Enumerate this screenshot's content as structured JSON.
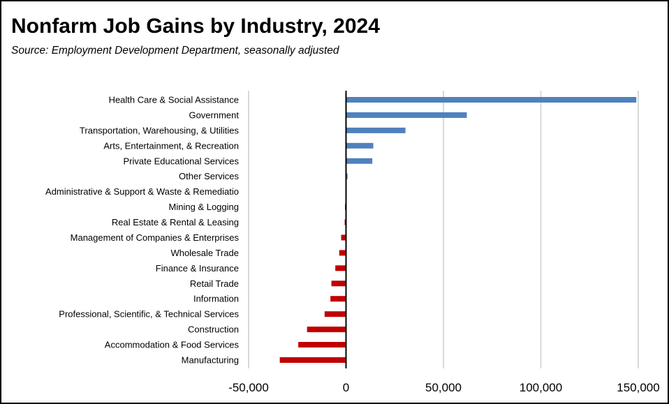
{
  "chart_data": {
    "type": "bar",
    "orientation": "horizontal",
    "title": "Nonfarm Job Gains by Industry, 2024",
    "subtitle": "Source:  Employment Development Department, seasonally adjusted",
    "xlabel": "",
    "ylabel": "",
    "xlim": [
      -50000,
      150000
    ],
    "x_ticks": [
      -50000,
      0,
      50000,
      100000,
      150000
    ],
    "x_tick_labels": [
      "-50,000",
      "0",
      "50,000",
      "100,000",
      "150,000"
    ],
    "grid": "vertical gridlines",
    "legend": "none",
    "categories": [
      "Health Care & Social Assistance",
      "Government",
      "Transportation, Warehousing, & Utilities",
      "Arts, Entertainment, & Recreation",
      "Private Educational Services",
      "Other Services",
      "Administrative & Support & Waste & Remediatio",
      "Mining & Logging",
      "Real Estate & Rental & Leasing",
      "Management of Companies & Enterprises",
      "Wholesale Trade",
      "Finance & Insurance",
      "Retail Trade",
      "Information",
      "Professional, Scientific, & Technical Services",
      "Construction",
      "Accommodation & Food Services",
      "Manufacturing"
    ],
    "values": [
      149000,
      62000,
      30500,
      14000,
      13500,
      800,
      0,
      -500,
      -700,
      -2500,
      -3500,
      -5500,
      -7500,
      -8000,
      -11000,
      -20000,
      -24500,
      -34000
    ],
    "colors": {
      "positive": "#4F81BD",
      "negative": "#C00000",
      "grid": "#D9D9D9",
      "axis": "#000000"
    }
  }
}
